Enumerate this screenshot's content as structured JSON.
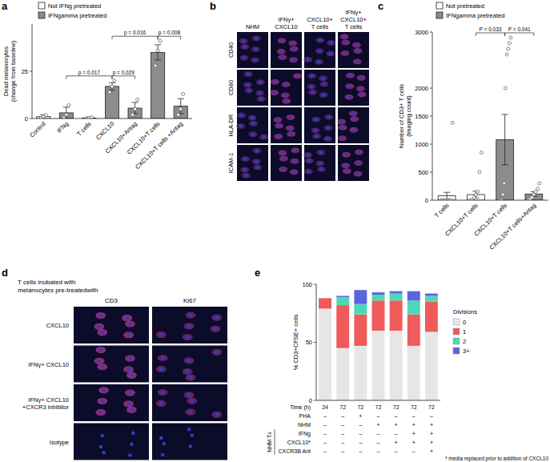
{
  "chart_data": [
    {
      "type": "bar",
      "title": "a",
      "y_label": [
        "Dead melanocytes",
        "(change from baseline)"
      ],
      "categories": [
        "Control",
        "IFNg",
        "T cells",
        "CXCL10",
        "CXCL10+Antag",
        "CXCL10+T cells",
        "CXCL10+T cells +Antag"
      ],
      "series": [
        {
          "name": "Not IFNg pretreated",
          "color": "#ffffff",
          "values": [
            1,
            null,
            0.3,
            null,
            null,
            null,
            null
          ],
          "errors": [
            1,
            null,
            0.5,
            null,
            null,
            null,
            null
          ],
          "points": [
            [
              0.3,
              1,
              1.8
            ],
            null,
            [
              0,
              0.3,
              0.6
            ],
            null,
            null,
            null,
            null
          ]
        },
        {
          "name": "IFNgamma pretreated",
          "color": "#8c8c8c",
          "values": [
            null,
            3,
            null,
            17,
            5.5,
            35,
            6.5
          ],
          "errors": [
            null,
            3,
            null,
            2,
            3,
            4,
            4
          ],
          "points": [
            null,
            [
              0.5,
              2,
              7
            ],
            null,
            [
              14,
              17,
              20
            ],
            [
              2,
              5,
              10
            ],
            [
              28,
              36,
              41
            ],
            [
              2,
              5,
              13
            ]
          ]
        }
      ],
      "ylim": [
        0,
        50
      ],
      "yticks": [
        0,
        25
      ],
      "legend": "top-left",
      "annotations": [
        {
          "text": "p = 0.029",
          "from": 3,
          "to": 4
        },
        {
          "text": "p = 0.017",
          "from": 1,
          "to": 3
        },
        {
          "text": "p = 0.016",
          "from": 3,
          "to": 5
        },
        {
          "text": "p = 0.008",
          "from": 5,
          "to": 6
        }
      ]
    },
    {
      "type": "image_grid",
      "title": "b",
      "columns": [
        [
          "NHM"
        ],
        [
          "IFNγ+",
          "CXCL10"
        ],
        [
          "CXCL10+",
          "T cells"
        ],
        [
          "IFNγ+",
          "CXCL10+",
          "T cells"
        ]
      ],
      "rows": [
        [
          "CD40"
        ],
        [
          "CD80"
        ],
        [
          "HLA-DR"
        ],
        [
          "ICAM-1"
        ]
      ]
    },
    {
      "type": "bar",
      "title": "c",
      "y_label": [
        "Number of CD3+ T cells",
        "(imaging count)"
      ],
      "categories": [
        "T cells",
        "CXCL10+T cells",
        "CXCL10+T cells",
        "CXCL10+T cells+Antag"
      ],
      "series": [
        {
          "name": "Not pretreated",
          "color": "#ffffff",
          "values": [
            80,
            100,
            null,
            null
          ],
          "errors": [
            60,
            60,
            null,
            null
          ],
          "points": [
            [
              0,
              0,
              0,
              0,
              0,
              0,
              0,
              1380
            ],
            [
              0,
              0,
              50,
              100,
              150,
              500,
              850
            ],
            null,
            null
          ]
        },
        {
          "name": "IFNgamma pretreated",
          "color": "#8c8c8c",
          "values": [
            null,
            null,
            1080,
            110
          ],
          "errors": [
            null,
            null,
            450,
            40
          ],
          "points": [
            null,
            null,
            [
              0,
              0,
              0,
              100,
              300,
              2000,
              2600,
              2700,
              2800,
              2900
            ],
            [
              0,
              20,
              50,
              100,
              150,
              200,
              300
            ]
          ]
        }
      ],
      "ylim": [
        0,
        3000
      ],
      "yticks": [
        0,
        500,
        1000,
        1500,
        2000,
        3000
      ],
      "legend": "top-left",
      "annotations": [
        {
          "text": "P = 0.033",
          "from": 1,
          "to": 2
        },
        {
          "text": "P = 0.041",
          "from": 2,
          "to": 3
        }
      ]
    },
    {
      "type": "image_grid",
      "title": "d",
      "heading": [
        "T cells inubated with",
        "melanocytes pre-treatedwith"
      ],
      "columns": [
        [
          "CD3"
        ],
        [
          "Ki67"
        ]
      ],
      "rows": [
        [
          "CXCL10"
        ],
        [
          "IFNγ+ CXCL10"
        ],
        [
          "IFNγ+ CXCL10",
          "+CXCR3 inhibitor"
        ],
        [
          "Isotype"
        ]
      ]
    },
    {
      "type": "bar",
      "stacked": true,
      "title": "e",
      "y_label": [
        "% CD3+CFSE+ cells"
      ],
      "x_label": "Time (h)",
      "categories": [
        "24",
        "72",
        "72",
        "72",
        "72",
        "72",
        "72"
      ],
      "series": [
        {
          "name": "0",
          "color": "#e6e6e6",
          "values": [
            79,
            45,
            47,
            60,
            60,
            47,
            59
          ]
        },
        {
          "name": "1",
          "color": "#ef5b5b",
          "values": [
            9,
            37,
            27,
            26,
            26,
            27,
            26
          ]
        },
        {
          "name": "2",
          "color": "#4ed8b5",
          "values": [
            0,
            7,
            9,
            5,
            6,
            12,
            5
          ]
        },
        {
          "name": "3+",
          "color": "#5b63e0",
          "values": [
            0,
            1,
            12,
            2,
            2,
            8,
            2
          ]
        }
      ],
      "ylim": [
        0,
        100
      ],
      "yticks": [
        0,
        50,
        100
      ],
      "legend": "right",
      "legend_title": "Divisions",
      "rows": [
        {
          "label": "PHA",
          "cells": [
            "–",
            "–",
            "+",
            "–",
            "–",
            "–",
            "–"
          ]
        },
        {
          "label": "NHM",
          "cells": [
            "–",
            "–",
            "–",
            "+",
            "+",
            "+",
            "+"
          ]
        },
        {
          "label": "IFNg",
          "cells": [
            "–",
            "–",
            "–",
            "–",
            "–",
            "+",
            "+"
          ]
        },
        {
          "label": "CXCL10*",
          "cells": [
            "–",
            "–",
            "–",
            "–",
            "+",
            "+",
            "+"
          ]
        },
        {
          "label": "CXCR3B Ant",
          "cells": [
            "–",
            "–",
            "–",
            "–",
            "–",
            "–",
            "+"
          ]
        }
      ],
      "group": {
        "label": "NHM Tx",
        "from": 2,
        "to": 4
      },
      "footnote": "* media replaced prior to addition of CXCL10"
    }
  ]
}
